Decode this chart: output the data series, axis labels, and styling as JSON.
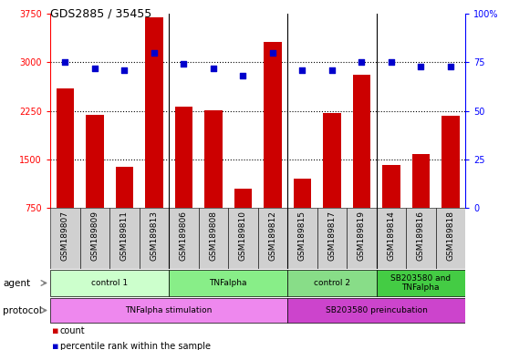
{
  "title": "GDS2885 / 35455",
  "samples": [
    "GSM189807",
    "GSM189809",
    "GSM189811",
    "GSM189813",
    "GSM189806",
    "GSM189808",
    "GSM189810",
    "GSM189812",
    "GSM189815",
    "GSM189817",
    "GSM189819",
    "GSM189814",
    "GSM189816",
    "GSM189818"
  ],
  "counts": [
    2600,
    2180,
    1380,
    3700,
    2320,
    2260,
    1050,
    3310,
    1200,
    2210,
    2810,
    1410,
    1580,
    2170
  ],
  "percentiles": [
    75,
    72,
    71,
    80,
    74,
    72,
    68,
    80,
    71,
    71,
    75,
    75,
    73,
    73
  ],
  "ylim_left": [
    750,
    3750
  ],
  "ylim_right": [
    0,
    100
  ],
  "yticks_left": [
    750,
    1500,
    2250,
    3000,
    3750
  ],
  "yticks_right": [
    0,
    25,
    50,
    75,
    100
  ],
  "ytick_labels_left": [
    "750",
    "1500",
    "2250",
    "3000",
    "3750"
  ],
  "ytick_labels_right": [
    "0",
    "25",
    "50",
    "75",
    "100%"
  ],
  "hlines": [
    1500,
    2250,
    3000
  ],
  "bar_color": "#cc0000",
  "dot_color": "#0000cc",
  "xtick_bg": "#d0d0d0",
  "agent_groups": [
    {
      "label": "control 1",
      "start": 0,
      "end": 4,
      "color": "#ccffcc"
    },
    {
      "label": "TNFalpha",
      "start": 4,
      "end": 8,
      "color": "#88ee88"
    },
    {
      "label": "control 2",
      "start": 8,
      "end": 11,
      "color": "#88dd88"
    },
    {
      "label": "SB203580 and\nTNFalpha",
      "start": 11,
      "end": 14,
      "color": "#44cc44"
    }
  ],
  "protocol_groups": [
    {
      "label": "TNFalpha stimulation",
      "start": 0,
      "end": 8,
      "color": "#ee88ee"
    },
    {
      "label": "SB203580 preincubation",
      "start": 8,
      "end": 14,
      "color": "#cc44cc"
    }
  ],
  "group_dividers": [
    3.5,
    7.5,
    10.5
  ],
  "legend_items": [
    {
      "label": "count",
      "color": "#cc0000"
    },
    {
      "label": "percentile rank within the sample",
      "color": "#0000cc"
    }
  ]
}
